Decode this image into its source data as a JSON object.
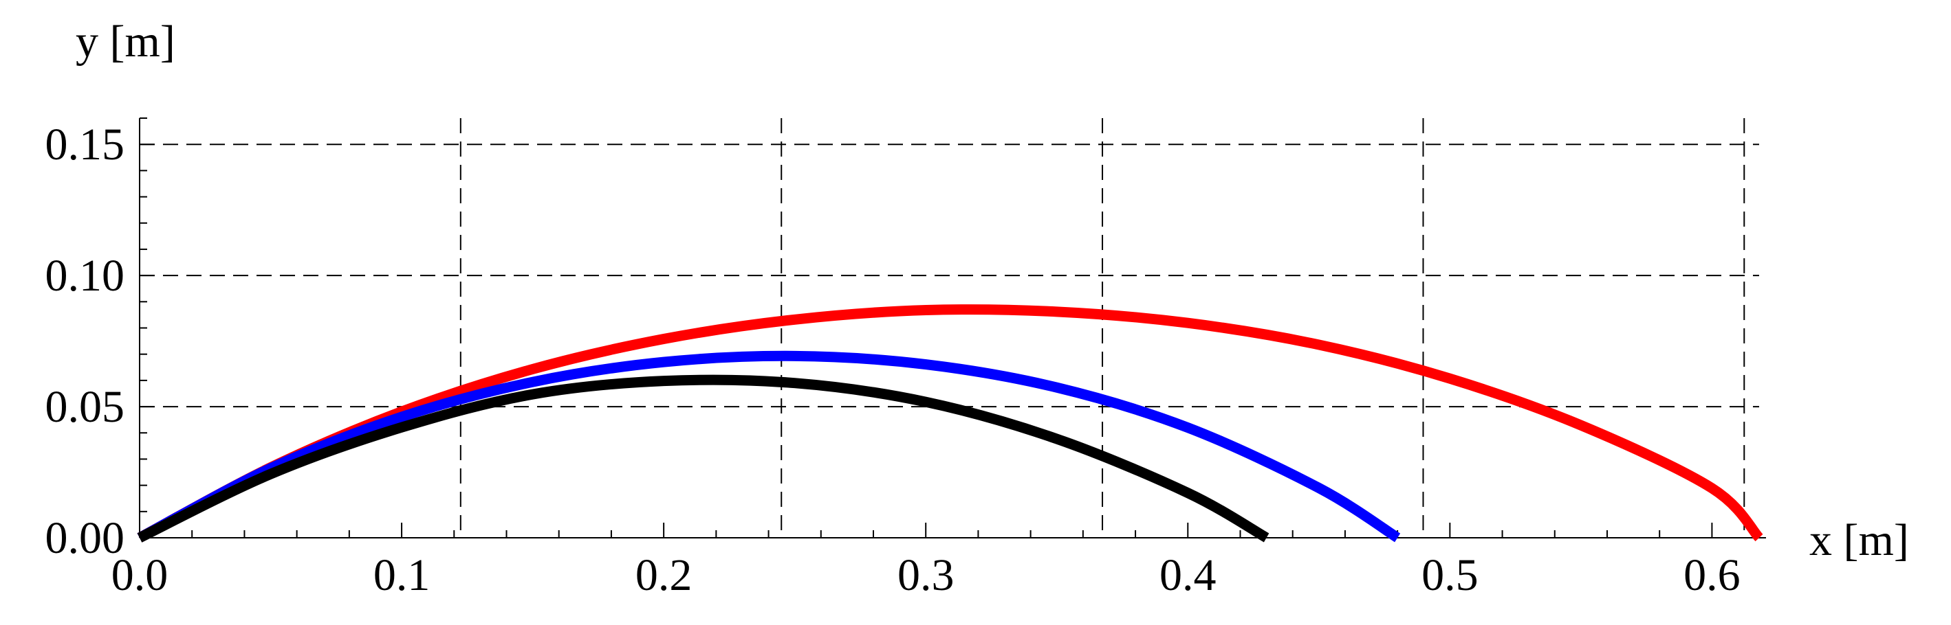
{
  "chart_data": {
    "type": "line",
    "title": "",
    "xlabel": "x [m]",
    "ylabel": "y [m]",
    "xlim": [
      0,
      0.618
    ],
    "ylim": [
      0,
      0.16
    ],
    "x_ticks": [
      {
        "value": 0.0,
        "label": "0.0"
      },
      {
        "value": 0.1,
        "label": "0.1"
      },
      {
        "value": 0.2,
        "label": "0.2"
      },
      {
        "value": 0.3,
        "label": "0.3"
      },
      {
        "value": 0.4,
        "label": "0.4"
      },
      {
        "value": 0.5,
        "label": "0.5"
      },
      {
        "value": 0.6,
        "label": "0.6"
      }
    ],
    "y_ticks": [
      {
        "value": 0.0,
        "label": "0.00"
      },
      {
        "value": 0.05,
        "label": "0.05"
      },
      {
        "value": 0.1,
        "label": "0.10"
      },
      {
        "value": 0.15,
        "label": "0.15"
      }
    ],
    "x_gridlines": [
      0.1225,
      0.2449,
      0.3674,
      0.4898,
      0.6123
    ],
    "y_gridlines": [
      0.05,
      0.1,
      0.15
    ],
    "grid": "dashed",
    "legend": "none",
    "series": [
      {
        "color": "#ff0000",
        "x": [
          0.0,
          0.05,
          0.1,
          0.15,
          0.2,
          0.25,
          0.3,
          0.35,
          0.4,
          0.45,
          0.5,
          0.55,
          0.6,
          0.618
        ],
        "y": [
          0.0,
          0.0268,
          0.0481,
          0.0643,
          0.0758,
          0.0832,
          0.0868,
          0.0862,
          0.0819,
          0.0736,
          0.0607,
          0.0429,
          0.0189,
          0.0
        ]
      },
      {
        "color": "#0000ff",
        "x": [
          0.0,
          0.05,
          0.1,
          0.15,
          0.2,
          0.25,
          0.3,
          0.35,
          0.4,
          0.45,
          0.48
        ],
        "y": [
          0.0,
          0.0265,
          0.0461,
          0.0594,
          0.067,
          0.0693,
          0.0661,
          0.0573,
          0.042,
          0.019,
          0.0
        ]
      },
      {
        "color": "#000000",
        "x": [
          0.0,
          0.05,
          0.1,
          0.15,
          0.2,
          0.25,
          0.3,
          0.35,
          0.4,
          0.43
        ],
        "y": [
          0.0,
          0.0243,
          0.0421,
          0.0547,
          0.0598,
          0.059,
          0.0518,
          0.0377,
          0.0171,
          0.0
        ]
      }
    ]
  }
}
